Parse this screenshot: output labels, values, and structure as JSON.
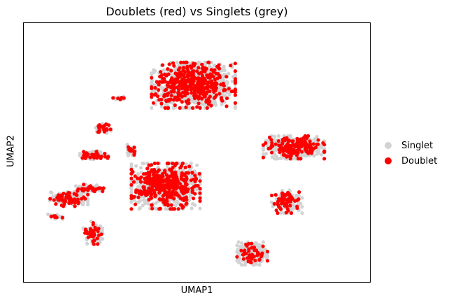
{
  "chart_data": {
    "type": "scatter",
    "title": "Doublets (red) vs Singlets (grey)",
    "xlabel": "UMAP1",
    "ylabel": "UMAP2",
    "xticks": [],
    "yticks": [],
    "xlim": [
      0,
      100
    ],
    "ylim": [
      0,
      100
    ],
    "grid": false,
    "legend_position": "right",
    "series": [
      {
        "name": "Singlet",
        "color": "#d3d3d3"
      },
      {
        "name": "Doublet",
        "color": "#ff0000"
      }
    ],
    "clusters": [
      {
        "center": [
          49,
          76
        ],
        "spread": [
          11,
          8
        ],
        "n_singlet": 900,
        "n_doublet": 420
      },
      {
        "center": [
          78,
          52
        ],
        "spread": [
          8,
          4
        ],
        "n_singlet": 320,
        "n_doublet": 160
      },
      {
        "center": [
          41,
          37
        ],
        "spread": [
          9,
          8
        ],
        "n_singlet": 700,
        "n_doublet": 360
      },
      {
        "center": [
          66,
          11
        ],
        "spread": [
          4,
          4
        ],
        "n_singlet": 260,
        "n_doublet": 45
      },
      {
        "center": [
          76,
          31
        ],
        "spread": [
          4,
          4
        ],
        "n_singlet": 110,
        "n_doublet": 55
      },
      {
        "center": [
          13,
          32
        ],
        "spread": [
          5,
          2.5
        ],
        "n_singlet": 120,
        "n_doublet": 55
      },
      {
        "center": [
          20,
          49
        ],
        "spread": [
          4,
          1.5
        ],
        "n_singlet": 70,
        "n_doublet": 30
      },
      {
        "center": [
          19,
          36
        ],
        "spread": [
          4,
          1.5
        ],
        "n_singlet": 60,
        "n_doublet": 25
      },
      {
        "center": [
          20,
          19
        ],
        "spread": [
          2.5,
          4
        ],
        "n_singlet": 80,
        "n_doublet": 35
      },
      {
        "center": [
          23,
          59
        ],
        "spread": [
          2,
          2
        ],
        "n_singlet": 40,
        "n_doublet": 18
      },
      {
        "center": [
          31,
          51
        ],
        "spread": [
          1.5,
          2
        ],
        "n_singlet": 25,
        "n_doublet": 12
      },
      {
        "center": [
          28,
          71
        ],
        "spread": [
          2,
          0.6
        ],
        "n_singlet": 18,
        "n_doublet": 6
      },
      {
        "center": [
          9,
          25
        ],
        "spread": [
          2,
          1
        ],
        "n_singlet": 16,
        "n_doublet": 6
      }
    ]
  },
  "legend": {
    "singlet_label": "Singlet",
    "doublet_label": "Doublet"
  }
}
